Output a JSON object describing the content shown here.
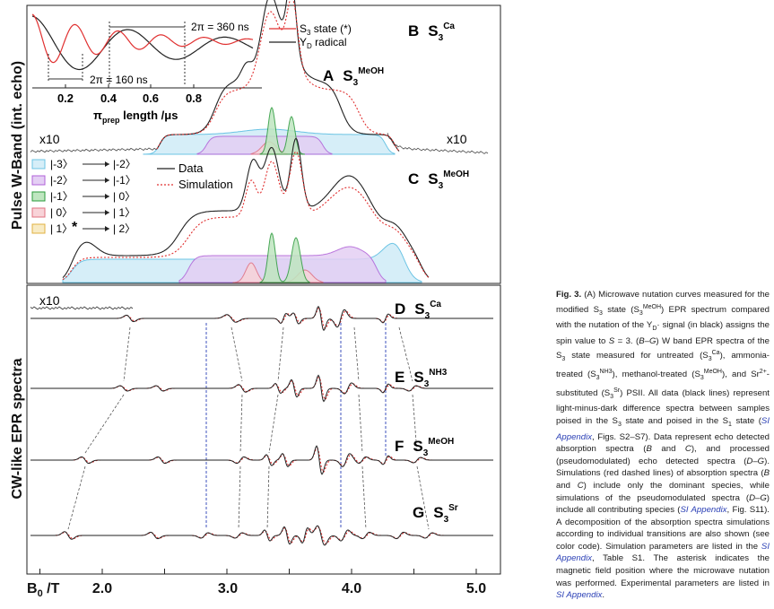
{
  "ylabels": {
    "top": "Pulse W-Band (int. echo)",
    "bottom": "CW-like EPR spectra"
  },
  "xaxis": {
    "label_main": "B",
    "label_sub": "0",
    "label_unit": " /T",
    "ticks": [
      "2.0",
      "3.0",
      "4.0",
      "5.0"
    ]
  },
  "inset": {
    "legend_s3_main": "S",
    "legend_s3_sub": "3",
    "legend_s3_rest": " state (*)",
    "legend_yd_main": "Y",
    "legend_yd_sub": "D",
    "legend_yd_rest": " radical",
    "period_yd": "2π = 360 ns",
    "period_s3": "2π = 160 ns",
    "ticks": [
      "0.2",
      "0.4",
      "0.6",
      "0.8"
    ],
    "xlabel_main": "π",
    "xlabel_sub": "prep",
    "xlabel_rest": " length /μs",
    "colors": {
      "s3": "#e03030",
      "yd": "#222222"
    }
  },
  "panels": {
    "a": {
      "letter": "A",
      "name": "S",
      "sub": "3",
      "sup": "MeOH"
    },
    "b": {
      "letter": "B",
      "name": "S",
      "sub": "3",
      "sup": "Ca"
    },
    "c": {
      "letter": "C",
      "name": "S",
      "sub": "3",
      "sup": "MeOH"
    },
    "d": {
      "letter": "D",
      "name": "S",
      "sub": "3",
      "sup": "Ca"
    },
    "e": {
      "letter": "E",
      "name": "S",
      "sub": "3",
      "sup": "NH3"
    },
    "f": {
      "letter": "F",
      "name": "S",
      "sub": "3",
      "sup": "MeOH"
    },
    "g": {
      "letter": "G",
      "name": "S",
      "sub": "3",
      "sup": "Sr"
    }
  },
  "x10_label": "x10",
  "asterisk": "*",
  "legend_transitions": [
    {
      "from": "|-3〉",
      "to": "|-2〉",
      "color": "#6cc4e4",
      "fill": "#d6eef8"
    },
    {
      "from": "|-2〉",
      "to": "|-1〉",
      "color": "#b060d8",
      "fill": "#e4cff4"
    },
    {
      "from": "|-1〉",
      "to": "| 0〉",
      "color": "#2a9a3a",
      "fill": "#bfe6c0"
    },
    {
      "from": "| 0〉",
      "to": "| 1〉",
      "color": "#e07080",
      "fill": "#f8d3d8"
    },
    {
      "from": "| 1〉",
      "to": "| 2〉",
      "color": "#e0b040",
      "fill": "#f8ebc4"
    }
  ],
  "legend_lines": {
    "data": "Data",
    "simulation": "Simulation"
  },
  "caption": {
    "fig": "Fig. 3.",
    "parts": [
      "(A) Microwave nutation curves measured for the modified S",
      "3",
      " state (S",
      "3",
      "MeOH",
      ") EPR spectrum compared with the nutation of the Y",
      "D",
      "· signal (in black) assigns the spin value to ",
      "S",
      " = 3. (",
      "B–G",
      ") W band EPR spectra of the S",
      "3",
      " state measured for untreated (S",
      "3",
      "Ca",
      "), ammonia-treated (S",
      "3",
      "NH3",
      "), methanol-treated (S",
      "3",
      "MeOH",
      "), and Sr",
      "2+",
      "-substituted (S",
      "3",
      "Sr",
      ") PSII. All data (black lines) represent light-minus-dark difference spectra between samples poised in the S",
      "3",
      " state and poised in the S",
      "1",
      " state (",
      "SI Appendix",
      ", Figs. S2–S7). Data represent echo detected absorption spectra (",
      "B",
      " and ",
      "C",
      "), and processed (pseudomodulated) echo detected spectra (",
      "D–G",
      "). Simulations (red dashed lines) of absorption spectra (",
      "B",
      " and ",
      "C",
      ") include only the dominant species, while simulations of the pseudomodulated spectra (",
      "D–G",
      ") include all contributing species (",
      "SI Appendix",
      ", Fig. S11). A decomposition of the absorption spectra simulations according to individual transitions are also shown (see color code). Simulation parameters are listed in the ",
      "SI Appendix",
      ", Table S1. The asterisk indicates the magnetic field position where the microwave nutation was performed. Experimental parameters are listed in ",
      "SI Appendix",
      "."
    ]
  }
}
